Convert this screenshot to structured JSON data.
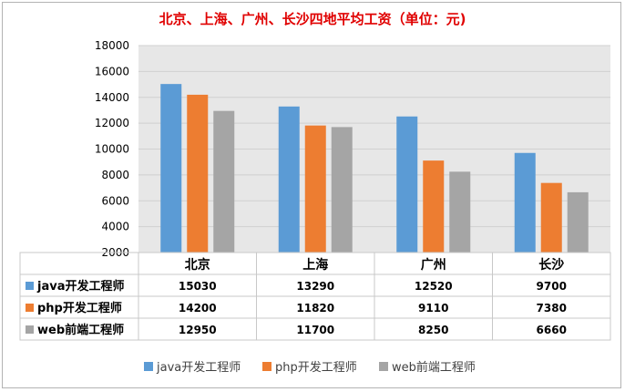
{
  "chart_data": {
    "type": "bar",
    "title": "北京、上海、广州、长沙四地平均工资（单位：元)",
    "categories": [
      "北京",
      "上海",
      "广州",
      "长沙"
    ],
    "series": [
      {
        "name": "java开发工程师",
        "values": [
          15030,
          13290,
          12520,
          9700
        ],
        "color": "#5b9bd5"
      },
      {
        "name": "php开发工程师",
        "values": [
          14200,
          11820,
          9110,
          7380
        ],
        "color": "#ed7d31"
      },
      {
        "name": "web前端工程师",
        "values": [
          12950,
          11700,
          8250,
          6660
        ],
        "color": "#a5a5a5"
      }
    ],
    "ylim": [
      2000,
      18000
    ],
    "yticks": [
      2000,
      4000,
      6000,
      8000,
      10000,
      12000,
      14000,
      16000,
      18000
    ],
    "grid": true,
    "data_table": true,
    "legend_position": "bottom"
  }
}
